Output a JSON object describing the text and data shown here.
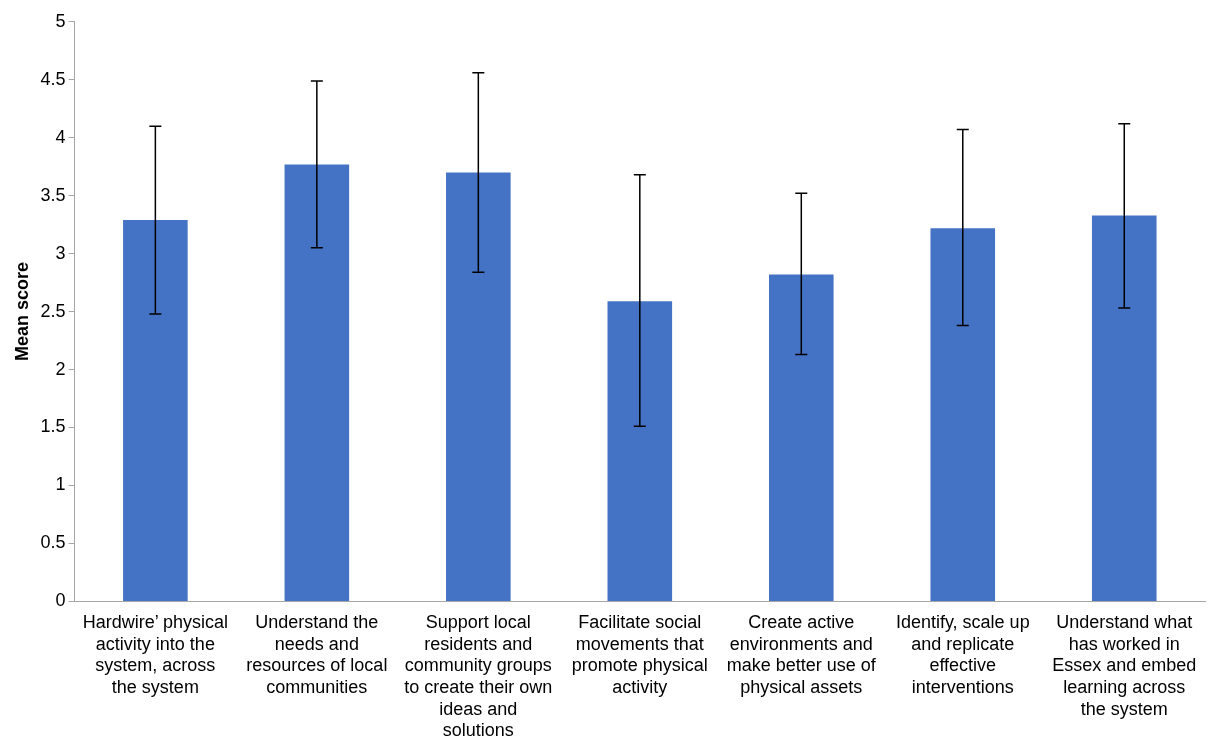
{
  "chart_data": {
    "type": "bar",
    "ylabel": "Mean score",
    "categories": [
      "Hardwire’ physical activity into the system, across the system",
      "Understand the needs and resources of local communities",
      "Support local residents and community groups to create their own ideas and solutions",
      "Facilitate social movements that promote physical activity",
      "Create active environments and make better use of physical assets",
      "Identify, scale up and replicate effective interventions",
      "Understand what has worked in Essex and embed learning across the system"
    ],
    "values": [
      3.29,
      3.77,
      3.7,
      2.59,
      2.82,
      3.22,
      3.33
    ],
    "errors": [
      [
        2.48,
        4.1
      ],
      [
        3.05,
        4.49
      ],
      [
        2.84,
        4.56
      ],
      [
        1.51,
        3.68
      ],
      [
        2.13,
        3.52
      ],
      [
        2.38,
        4.07
      ],
      [
        2.53,
        4.12
      ]
    ],
    "color": "#4472c4",
    "ylim": [
      0,
      5
    ],
    "yticks": [
      0,
      0.5,
      1,
      1.5,
      2,
      2.5,
      3,
      3.5,
      4,
      4.5,
      5
    ],
    "grid": false,
    "legend": false
  }
}
